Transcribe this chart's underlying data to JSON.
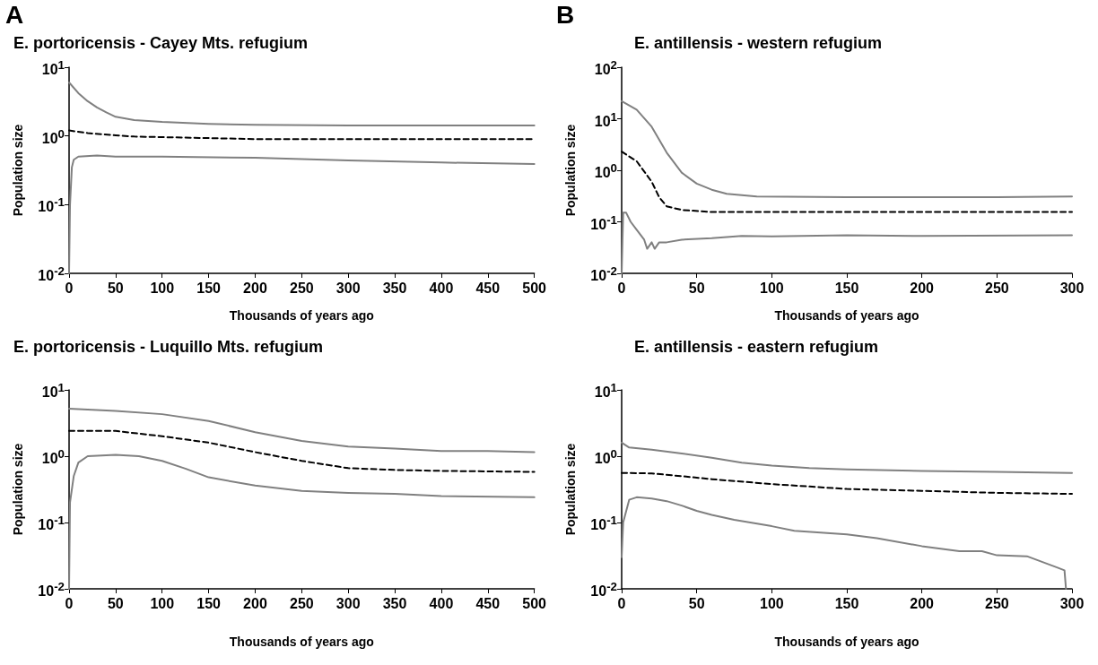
{
  "chart_data": [
    {
      "type": "line",
      "title": "E. portoricensis - Cayey Mts. refugium",
      "xlabel": "Thousands of years ago",
      "ylabel": "Population size",
      "annotations": [
        "A"
      ],
      "log": "y",
      "grid": false,
      "marker": "none",
      "xlim": [
        0,
        500
      ],
      "xticks": [
        0,
        50,
        100,
        150,
        200,
        250,
        300,
        350,
        400,
        450,
        500
      ],
      "ylim": [
        0.01,
        10
      ],
      "yticks": [
        {
          "value": 0.01,
          "label": "10$^{-2}$"
        },
        {
          "value": 0.1,
          "label": "10$^{-1}$"
        },
        {
          "value": 1,
          "label": "10$^{0}$"
        },
        {
          "value": 10,
          "label": "10$^{1}$"
        }
      ],
      "series": [
        {
          "color": "#808080",
          "line_style": "solid",
          "x": [
            0,
            10,
            20,
            30,
            40,
            50,
            70,
            100,
            150,
            200,
            300,
            400,
            500
          ],
          "values": [
            6,
            4.2,
            3.2,
            2.6,
            2.2,
            1.9,
            1.7,
            1.6,
            1.5,
            1.45,
            1.42,
            1.42,
            1.42
          ]
        },
        {
          "color": "#000000",
          "line_style": "dashed",
          "x": [
            0,
            20,
            50,
            70,
            100,
            150,
            200,
            300,
            500
          ],
          "values": [
            1.2,
            1.1,
            1.02,
            0.98,
            0.96,
            0.93,
            0.9,
            0.9,
            0.9
          ]
        },
        {
          "color": "#808080",
          "line_style": "solid",
          "x": [
            0,
            1,
            3,
            5,
            10,
            30,
            50,
            100,
            200,
            300,
            400,
            500
          ],
          "values": [
            0.01,
            0.1,
            0.35,
            0.45,
            0.5,
            0.52,
            0.5,
            0.5,
            0.48,
            0.44,
            0.41,
            0.39
          ]
        }
      ]
    },
    {
      "type": "line",
      "title": "E. antillensis - western refugium",
      "xlabel": "Thousands of years ago",
      "ylabel": "Population size",
      "annotations": [
        "B"
      ],
      "log": "y",
      "grid": false,
      "marker": "none",
      "xlim": [
        0,
        300
      ],
      "xticks": [
        0,
        50,
        100,
        150,
        200,
        250,
        300
      ],
      "ylim": [
        0.01,
        100
      ],
      "yticks": [
        {
          "value": 0.01,
          "label": "10$^{-2}$"
        },
        {
          "value": 0.1,
          "label": "10$^{-1}$"
        },
        {
          "value": 1,
          "label": "10$^{0}$"
        },
        {
          "value": 10,
          "label": "10$^{1}$"
        },
        {
          "value": 100,
          "label": "10$^{2}$"
        }
      ],
      "series": [
        {
          "color": "#808080",
          "line_style": "solid",
          "x": [
            0,
            10,
            20,
            30,
            40,
            50,
            60,
            70,
            90,
            150,
            250,
            300
          ],
          "values": [
            22,
            15,
            7,
            2.2,
            0.9,
            0.55,
            0.42,
            0.35,
            0.31,
            0.3,
            0.3,
            0.31
          ]
        },
        {
          "color": "#000000",
          "line_style": "dashed",
          "x": [
            0,
            10,
            20,
            25,
            30,
            40,
            60,
            100,
            300
          ],
          "values": [
            2.3,
            1.5,
            0.6,
            0.3,
            0.2,
            0.17,
            0.155,
            0.155,
            0.155
          ]
        },
        {
          "color": "#808080",
          "line_style": "solid",
          "x": [
            0,
            1,
            3,
            6,
            10,
            15,
            17,
            20,
            22,
            25,
            30,
            40,
            60,
            80,
            100,
            150,
            200,
            300
          ],
          "values": [
            0.01,
            0.15,
            0.15,
            0.1,
            0.07,
            0.045,
            0.03,
            0.04,
            0.03,
            0.04,
            0.04,
            0.045,
            0.048,
            0.053,
            0.052,
            0.055,
            0.053,
            0.055
          ]
        }
      ]
    },
    {
      "type": "line",
      "title": "E. portoricensis - Luquillo Mts. refugium",
      "xlabel": "Thousands of years ago",
      "ylabel": "Population size",
      "log": "y",
      "grid": false,
      "marker": "none",
      "xlim": [
        0,
        500
      ],
      "xticks": [
        0,
        50,
        100,
        150,
        200,
        250,
        300,
        350,
        400,
        450,
        500
      ],
      "ylim": [
        0.01,
        10
      ],
      "yticks": [
        {
          "value": 0.01,
          "label": "10$^{-2}$"
        },
        {
          "value": 0.1,
          "label": "10$^{-1}$"
        },
        {
          "value": 1,
          "label": "10$^{0}$"
        },
        {
          "value": 10,
          "label": "10$^{1}$"
        }
      ],
      "series": [
        {
          "color": "#808080",
          "line_style": "solid",
          "x": [
            0,
            50,
            100,
            150,
            200,
            250,
            300,
            350,
            400,
            450,
            500
          ],
          "values": [
            5.2,
            4.8,
            4.3,
            3.4,
            2.3,
            1.7,
            1.4,
            1.3,
            1.2,
            1.2,
            1.15
          ]
        },
        {
          "color": "#000000",
          "line_style": "dashed",
          "x": [
            0,
            50,
            100,
            150,
            200,
            250,
            300,
            350,
            400,
            500
          ],
          "values": [
            2.4,
            2.4,
            2.0,
            1.6,
            1.15,
            0.85,
            0.66,
            0.62,
            0.6,
            0.58
          ]
        },
        {
          "color": "#808080",
          "line_style": "solid",
          "x": [
            0,
            1,
            5,
            10,
            20,
            50,
            75,
            100,
            125,
            150,
            200,
            250,
            300,
            350,
            400,
            500
          ],
          "values": [
            0.01,
            0.2,
            0.5,
            0.8,
            1.0,
            1.05,
            1.0,
            0.85,
            0.65,
            0.48,
            0.36,
            0.3,
            0.28,
            0.27,
            0.25,
            0.24
          ]
        }
      ]
    },
    {
      "type": "line",
      "title": "E. antillensis - eastern refugium",
      "xlabel": "Thousands of years ago",
      "ylabel": "Population size",
      "log": "y",
      "grid": false,
      "marker": "none",
      "xlim": [
        0,
        300
      ],
      "xticks": [
        0,
        50,
        100,
        150,
        200,
        250,
        300
      ],
      "ylim": [
        0.01,
        10
      ],
      "yticks": [
        {
          "value": 0.01,
          "label": "10$^{-2}$"
        },
        {
          "value": 0.1,
          "label": "10$^{-1}$"
        },
        {
          "value": 1,
          "label": "10$^{0}$"
        },
        {
          "value": 10,
          "label": "10$^{1}$"
        }
      ],
      "series": [
        {
          "color": "#808080",
          "line_style": "solid",
          "x": [
            0,
            5,
            20,
            40,
            60,
            80,
            100,
            125,
            150,
            200,
            250,
            300
          ],
          "values": [
            1.6,
            1.35,
            1.25,
            1.1,
            0.95,
            0.8,
            0.72,
            0.66,
            0.63,
            0.6,
            0.58,
            0.56
          ]
        },
        {
          "color": "#000000",
          "line_style": "dashed",
          "x": [
            0,
            20,
            40,
            60,
            100,
            150,
            200,
            250,
            300
          ],
          "values": [
            0.56,
            0.55,
            0.5,
            0.45,
            0.38,
            0.32,
            0.3,
            0.28,
            0.27
          ]
        },
        {
          "color": "#808080",
          "line_style": "solid",
          "x": [
            0,
            1,
            5,
            10,
            20,
            30,
            40,
            50,
            60,
            75,
            100,
            115,
            150,
            170,
            200,
            225,
            240,
            250,
            270,
            290,
            295,
            296
          ],
          "values": [
            0.03,
            0.1,
            0.22,
            0.24,
            0.23,
            0.21,
            0.18,
            0.15,
            0.13,
            0.11,
            0.088,
            0.075,
            0.066,
            0.058,
            0.044,
            0.037,
            0.037,
            0.032,
            0.031,
            0.021,
            0.019,
            0.01
          ]
        }
      ]
    }
  ]
}
